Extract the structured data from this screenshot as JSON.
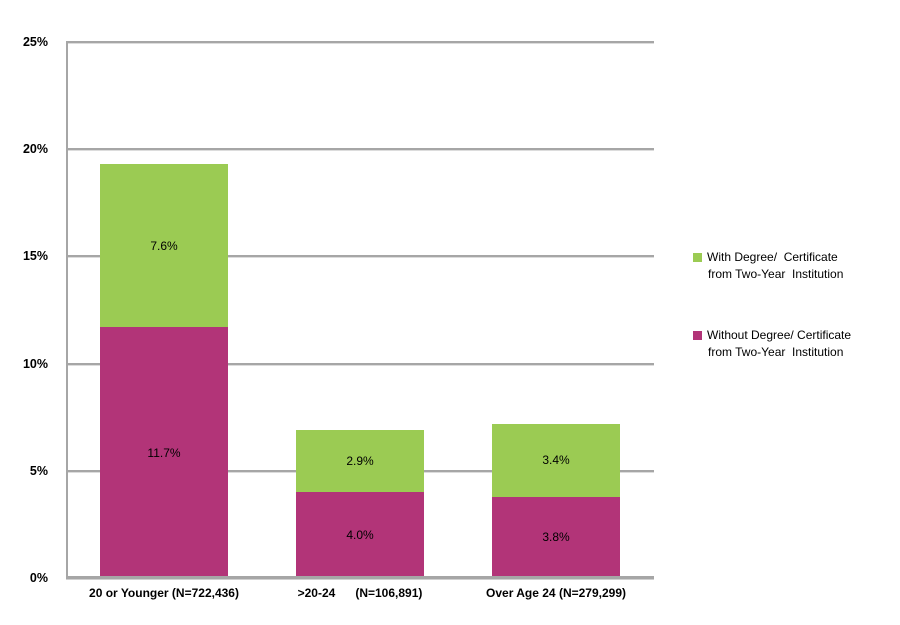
{
  "chart_data": {
    "type": "bar",
    "stacked": true,
    "title": "",
    "xlabel": "",
    "ylabel": "",
    "categories": [
      "20 or Younger (N=722,436)",
      ">20-24      (N=106,891)",
      "Over Age 24 (N=279,299)"
    ],
    "series": [
      {
        "name": "Without Degree/ Certificate from Two-Year Institution",
        "color": "#b23478",
        "values": [
          11.7,
          4.0,
          3.8
        ],
        "data_labels": [
          "11.7%",
          "4.0%",
          "3.8%"
        ]
      },
      {
        "name": "With Degree/ Certificate from Two-Year Institution",
        "color": "#9bcb53",
        "values": [
          7.6,
          2.9,
          3.4
        ],
        "data_labels": [
          "7.6%",
          "2.9%",
          "3.4%"
        ]
      }
    ],
    "ylim": [
      0,
      25
    ],
    "yticks": [
      {
        "value": 0,
        "label": "0%"
      },
      {
        "value": 5,
        "label": "5%"
      },
      {
        "value": 10,
        "label": "10%"
      },
      {
        "value": 15,
        "label": "15%"
      },
      {
        "value": 20,
        "label": "20%"
      },
      {
        "value": 25,
        "label": "25%"
      }
    ],
    "grid": true,
    "gridline_color": "#a6a6a6",
    "legend_position": "right",
    "background_color": "#ffffff"
  },
  "legend": {
    "items": [
      {
        "lines": [
          "With Degree/  Certificate",
          "from Two-Year  Institution"
        ],
        "color": "#9bcb53"
      },
      {
        "lines": [
          "Without Degree/ Certificate",
          "from Two-Year  Institution"
        ],
        "color": "#b23478"
      }
    ]
  }
}
